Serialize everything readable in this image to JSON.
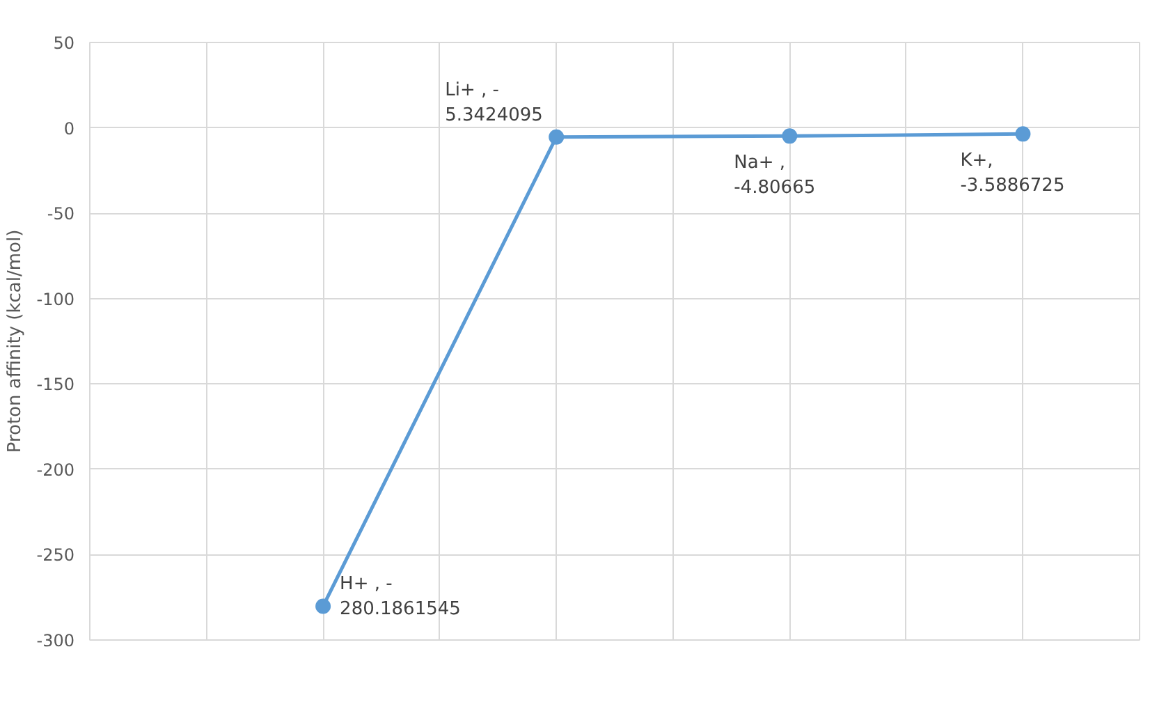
{
  "chart_data": {
    "type": "line",
    "ylabel": "Proton affinity (kcal/mol)",
    "categories": [
      null,
      null,
      null,
      null
    ],
    "series": [
      {
        "color": "#5b9bd5",
        "values": [
          -280.1861545,
          -5.3424095,
          -4.80665,
          -3.5886725
        ]
      }
    ],
    "ylim": [
      -300,
      50
    ],
    "yticks": [
      -300,
      -250,
      -200,
      -150,
      -100,
      -50,
      0,
      50
    ],
    "grid": true,
    "marker": "circle",
    "line_style": "solid",
    "annotations": [
      "H+    , -\n280.1861545",
      "Li+    , -\n5.3424095",
      "Na+      ,\n-4.80665",
      "K+,\n-3.5886725"
    ]
  }
}
